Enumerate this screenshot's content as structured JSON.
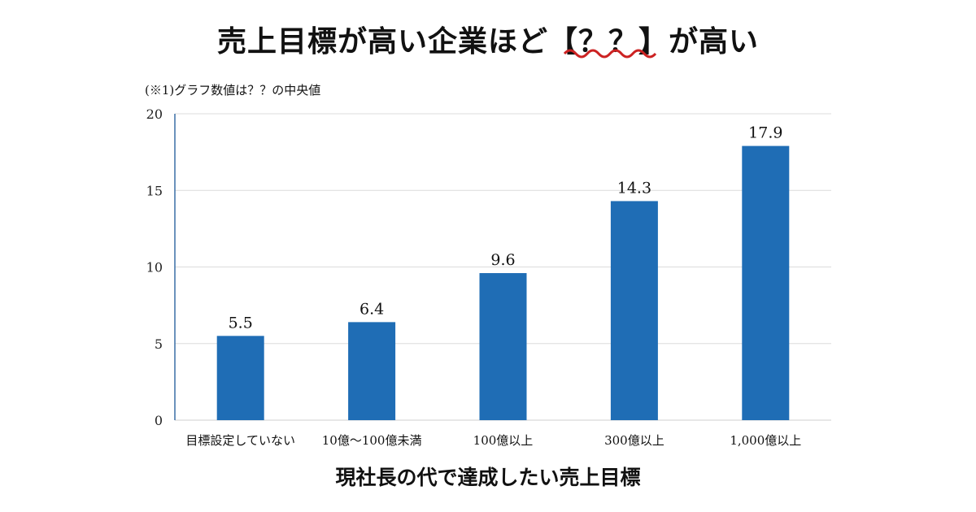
{
  "chart_data": {
    "type": "bar",
    "title": "売上目標が高い企業ほど【？？】が高い",
    "note": "(※1)グラフ数値は？？の中央値",
    "xlabel": "現社長の代で達成したい売上目標",
    "ylabel": "",
    "categories": [
      "目標設定していない",
      "10億～100億未満",
      "100億以上",
      "300億以上",
      "1,000億以上"
    ],
    "values": [
      5.5,
      6.4,
      9.6,
      14.3,
      17.9
    ],
    "data_labels": [
      "5.5",
      "6.4",
      "9.6",
      "14.3",
      "17.9"
    ],
    "ylim": [
      0,
      20
    ],
    "yticks": [
      0,
      5,
      10,
      15,
      20
    ],
    "grid": true,
    "bar_color": "#1f6db5",
    "underline_color": "#cc2222"
  }
}
